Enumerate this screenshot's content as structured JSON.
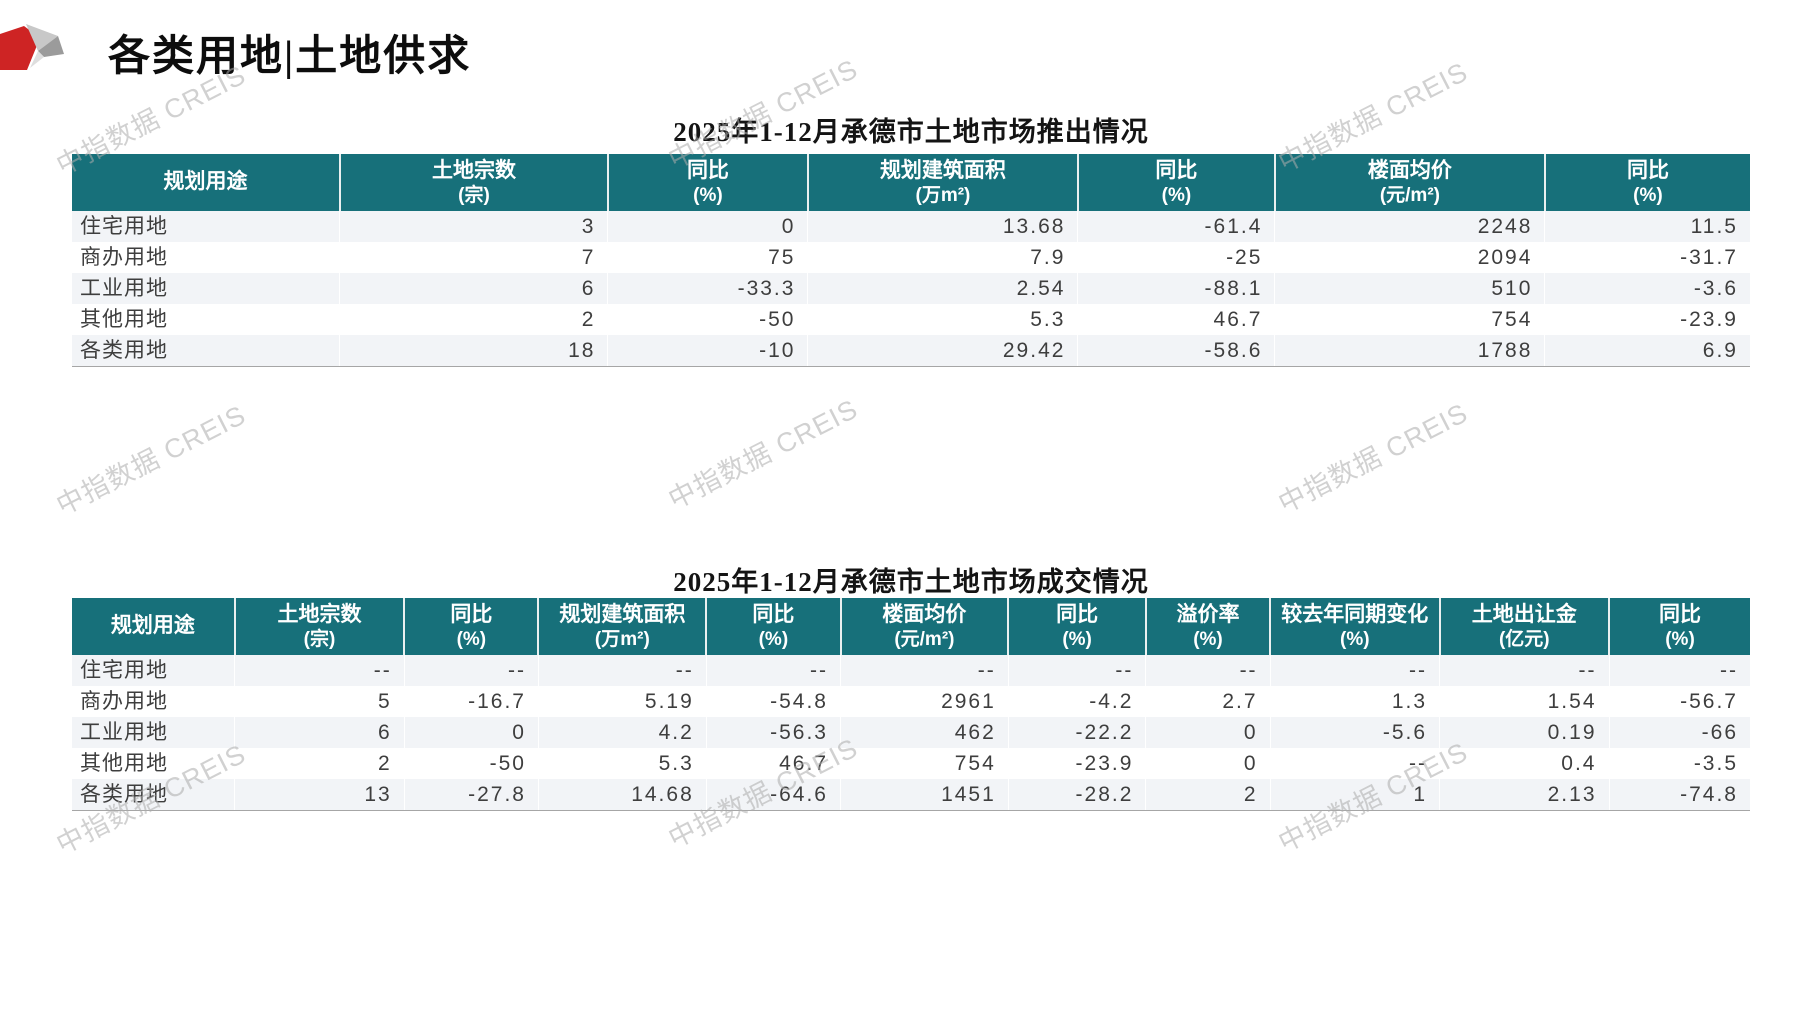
{
  "page": {
    "title": "各类用地|土地供求",
    "watermark": "中指数据 CREIS"
  },
  "colors": {
    "header_bg": "#17707A",
    "stripe": "#F2F4F7",
    "logo_red": "#CE2424",
    "logo_gray_light": "#C8C8C8",
    "logo_gray_mid": "#9B9B9B",
    "logo_gray_pale": "#DEDEDE",
    "watermark_gray": "#ACACAC"
  },
  "tables": [
    {
      "title": "2025年1-12月承德市土地市场推出情况",
      "columns": [
        {
          "label": "规划用途",
          "unit": ""
        },
        {
          "label": "土地宗数",
          "unit": "(宗)"
        },
        {
          "label": "同比",
          "unit": "(%)"
        },
        {
          "label": "规划建筑面积",
          "unit": "(万m²)"
        },
        {
          "label": "同比",
          "unit": "(%)"
        },
        {
          "label": "楼面均价",
          "unit": "(元/m²)"
        },
        {
          "label": "同比",
          "unit": "(%)"
        }
      ],
      "rows": [
        [
          "住宅用地",
          "3",
          "0",
          "13.68",
          "-61.4",
          "2248",
          "11.5"
        ],
        [
          "商办用地",
          "7",
          "75",
          "7.9",
          "-25",
          "2094",
          "-31.7"
        ],
        [
          "工业用地",
          "6",
          "-33.3",
          "2.54",
          "-88.1",
          "510",
          "-3.6"
        ],
        [
          "其他用地",
          "2",
          "-50",
          "5.3",
          "46.7",
          "754",
          "-23.9"
        ],
        [
          "各类用地",
          "18",
          "-10",
          "29.42",
          "-58.6",
          "1788",
          "6.9"
        ]
      ]
    },
    {
      "title": "2025年1-12月承德市土地市场成交情况",
      "columns": [
        {
          "label": "规划用途",
          "unit": ""
        },
        {
          "label": "土地宗数",
          "unit": "(宗)"
        },
        {
          "label": "同比",
          "unit": "(%)"
        },
        {
          "label": "规划建筑面积",
          "unit": "(万m²)"
        },
        {
          "label": "同比",
          "unit": "(%)"
        },
        {
          "label": "楼面均价",
          "unit": "(元/m²)"
        },
        {
          "label": "同比",
          "unit": "(%)"
        },
        {
          "label": "溢价率",
          "unit": "(%)"
        },
        {
          "label": "较去年同期变化",
          "unit": "(%)"
        },
        {
          "label": "土地出让金",
          "unit": "(亿元)"
        },
        {
          "label": "同比",
          "unit": "(%)"
        }
      ],
      "rows": [
        [
          "住宅用地",
          "--",
          "--",
          "--",
          "--",
          "--",
          "--",
          "--",
          "--",
          "--",
          "--"
        ],
        [
          "商办用地",
          "5",
          "-16.7",
          "5.19",
          "-54.8",
          "2961",
          "-4.2",
          "2.7",
          "1.3",
          "1.54",
          "-56.7"
        ],
        [
          "工业用地",
          "6",
          "0",
          "4.2",
          "-56.3",
          "462",
          "-22.2",
          "0",
          "-5.6",
          "0.19",
          "-66"
        ],
        [
          "其他用地",
          "2",
          "-50",
          "5.3",
          "46.7",
          "754",
          "-23.9",
          "0",
          "--",
          "0.4",
          "-3.5"
        ],
        [
          "各类用地",
          "13",
          "-27.8",
          "14.68",
          "-64.6",
          "1451",
          "-28.2",
          "2",
          "1",
          "2.13",
          "-74.8"
        ]
      ]
    }
  ]
}
